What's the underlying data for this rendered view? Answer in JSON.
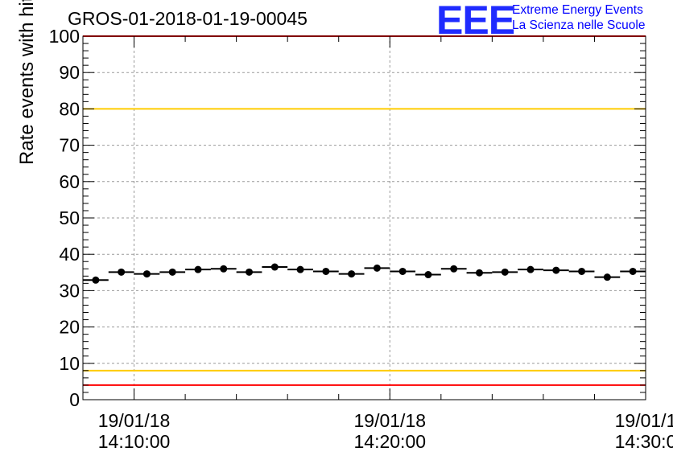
{
  "chart_data": {
    "type": "scatter",
    "title": "GROS-01-2018-01-19-00045",
    "xlabel": "",
    "ylabel": "Rate events with hits [Hz]",
    "ylim": [
      0,
      100
    ],
    "yticks": [
      0,
      10,
      20,
      30,
      40,
      50,
      60,
      70,
      80,
      90,
      100
    ],
    "xticklabels": [
      {
        "date": "19/01/18",
        "time": "14:10:00"
      },
      {
        "date": "19/01/18",
        "time": "14:20:00"
      },
      {
        "date": "19/01/1",
        "time": "14:30:0"
      }
    ],
    "grid": true,
    "x_unit": "minutes after 14:00:00",
    "xlim": [
      8.0,
      30.0
    ],
    "series": [
      {
        "x": [
          8.5,
          9.5,
          10.5,
          11.5,
          12.5,
          13.5,
          14.5,
          15.5,
          16.5,
          17.5,
          18.5,
          19.5,
          20.5,
          21.5,
          22.5,
          23.5,
          24.5,
          25.5,
          26.5,
          27.5,
          28.5,
          29.5
        ],
        "values": [
          32.9,
          35.1,
          34.6,
          35.1,
          35.8,
          36.0,
          35.1,
          36.5,
          35.8,
          35.3,
          34.6,
          36.2,
          35.3,
          34.4,
          36.0,
          34.9,
          35.1,
          35.8,
          35.6,
          35.3,
          33.7,
          35.3
        ],
        "x_half_width": 0.5,
        "color": "#000000"
      }
    ],
    "reference_lines": [
      {
        "y": 100,
        "color": "#ff0000"
      },
      {
        "y": 80,
        "color": "#ffcc00"
      },
      {
        "y": 8,
        "color": "#ffcc00"
      },
      {
        "y": 4,
        "color": "#ff0000"
      }
    ]
  },
  "logo": {
    "text": "EEE",
    "line1": "Extreme Energy Events",
    "line2": "La Scienza nelle Scuole",
    "color": "#0000ff"
  }
}
